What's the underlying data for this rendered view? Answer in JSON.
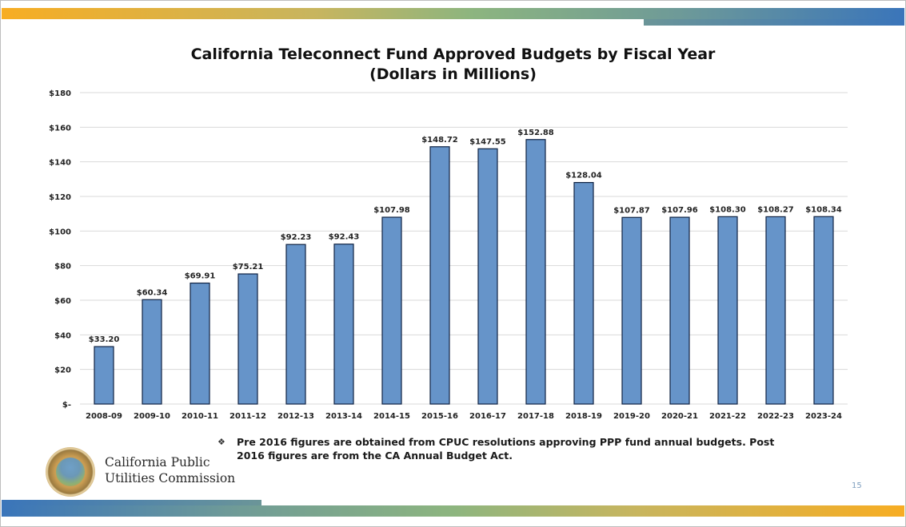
{
  "slide": {
    "title_line1": "California Teleconnect Fund Approved Budgets by Fiscal Year",
    "title_line2": "(Dollars in Millions)",
    "note_bullet": "❖",
    "note": "Pre 2016 figures are obtained from CPUC resolutions approving PPP fund annual budgets. Post 2016 figures are from the CA Annual Budget Act.",
    "org_line1": "California Public",
    "org_line2": "Utilities Commission",
    "page_number": "15",
    "colors": {
      "bar_fill": "#6694c9",
      "bar_stroke": "#0f2242",
      "gridline": "#d9d9d9",
      "band_orange": "#f7ad23",
      "band_blue": "#3a75ba"
    }
  },
  "chart_data": {
    "type": "bar",
    "title": "California Teleconnect Fund Approved Budgets by Fiscal Year (Dollars in Millions)",
    "xlabel": "",
    "ylabel": "",
    "categories": [
      "2008-09",
      "2009-10",
      "2010-11",
      "2011-12",
      "2012-13",
      "2013-14",
      "2014-15",
      "2015-16",
      "2016-17",
      "2017-18",
      "2018-19",
      "2019-20",
      "2020-21",
      "2021-22",
      "2022-23",
      "2023-24"
    ],
    "values": [
      33.2,
      60.34,
      69.91,
      75.21,
      92.23,
      92.43,
      107.98,
      148.72,
      147.55,
      152.88,
      128.04,
      107.87,
      107.96,
      108.3,
      108.27,
      108.34
    ],
    "data_labels": [
      "$33.20",
      "$60.34",
      "$69.91",
      "$75.21",
      "$92.23",
      "$92.43",
      "$107.98",
      "$148.72",
      "$147.55",
      "$152.88",
      "$128.04",
      "$107.87",
      "$107.96",
      "$108.30",
      "$108.27",
      "$108.34"
    ],
    "ylim": [
      0,
      180
    ],
    "yticks": [
      0,
      20,
      40,
      60,
      80,
      100,
      120,
      140,
      160,
      180
    ],
    "ytick_labels": [
      "$-",
      "$20",
      "$40",
      "$60",
      "$80",
      "$100",
      "$120",
      "$140",
      "$160",
      "$180"
    ],
    "grid": true,
    "legend": "none"
  }
}
